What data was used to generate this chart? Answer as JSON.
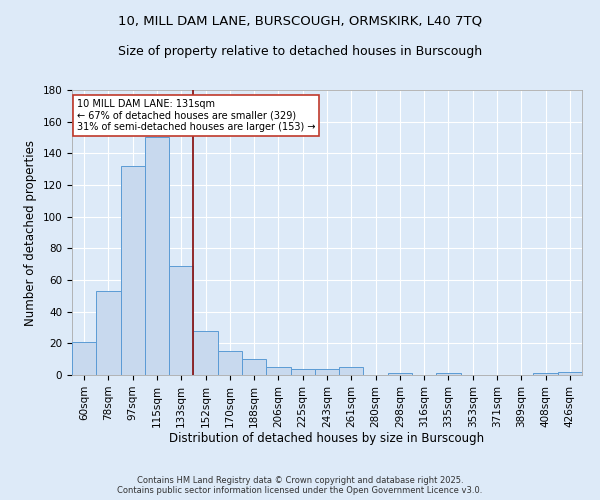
{
  "title_line1": "10, MILL DAM LANE, BURSCOUGH, ORMSKIRK, L40 7TQ",
  "title_line2": "Size of property relative to detached houses in Burscough",
  "xlabel": "Distribution of detached houses by size in Burscough",
  "ylabel": "Number of detached properties",
  "bar_labels": [
    "60sqm",
    "78sqm",
    "97sqm",
    "115sqm",
    "133sqm",
    "152sqm",
    "170sqm",
    "188sqm",
    "206sqm",
    "225sqm",
    "243sqm",
    "261sqm",
    "280sqm",
    "298sqm",
    "316sqm",
    "335sqm",
    "353sqm",
    "371sqm",
    "389sqm",
    "408sqm",
    "426sqm"
  ],
  "bar_values": [
    21,
    53,
    132,
    150,
    69,
    28,
    15,
    10,
    5,
    4,
    4,
    5,
    0,
    1,
    0,
    1,
    0,
    0,
    0,
    1,
    2
  ],
  "bar_color": "#c8d9ee",
  "bar_edge_color": "#5b9bd5",
  "ylim": [
    0,
    180
  ],
  "yticks": [
    0,
    20,
    40,
    60,
    80,
    100,
    120,
    140,
    160,
    180
  ],
  "vline_idx": 4,
  "vline_color": "#8b1a1a",
  "annotation_line1": "10 MILL DAM LANE: 131sqm",
  "annotation_line2": "← 67% of detached houses are smaller (329)",
  "annotation_line3": "31% of semi-detached houses are larger (153) →",
  "annotation_box_facecolor": "#ffffff",
  "annotation_box_edgecolor": "#c0392b",
  "footer_text": "Contains HM Land Registry data © Crown copyright and database right 2025.\nContains public sector information licensed under the Open Government Licence v3.0.",
  "bg_color": "#ddeaf8",
  "plot_bg_color": "#ddeaf8",
  "grid_color": "#ffffff",
  "title_fontsize": 9.5,
  "subtitle_fontsize": 9,
  "axis_label_fontsize": 8.5,
  "tick_fontsize": 7.5,
  "annotation_fontsize": 7,
  "footer_fontsize": 6
}
